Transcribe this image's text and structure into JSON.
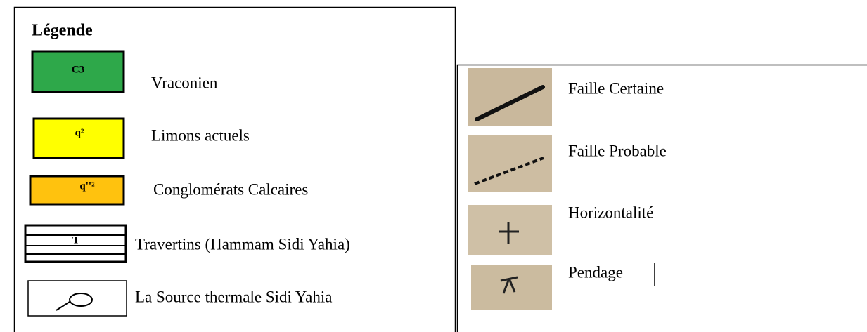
{
  "header": {
    "title": "Légende"
  },
  "units": [
    {
      "symbol": "C3",
      "label": "Vraconien"
    },
    {
      "symbol": "q²",
      "label": "Limons actuels"
    },
    {
      "symbol": "q''²",
      "label": "Conglomérats Calcaires"
    },
    {
      "symbol": "T",
      "label": "Travertins (Hammam Sidi Yahia)"
    },
    {
      "label": "La Source thermale Sidi Yahia"
    }
  ],
  "structures": [
    {
      "label": "Faille Certaine"
    },
    {
      "label": "Faille Probable"
    },
    {
      "label": "Horizontalité"
    },
    {
      "label": "Pendage"
    }
  ]
}
